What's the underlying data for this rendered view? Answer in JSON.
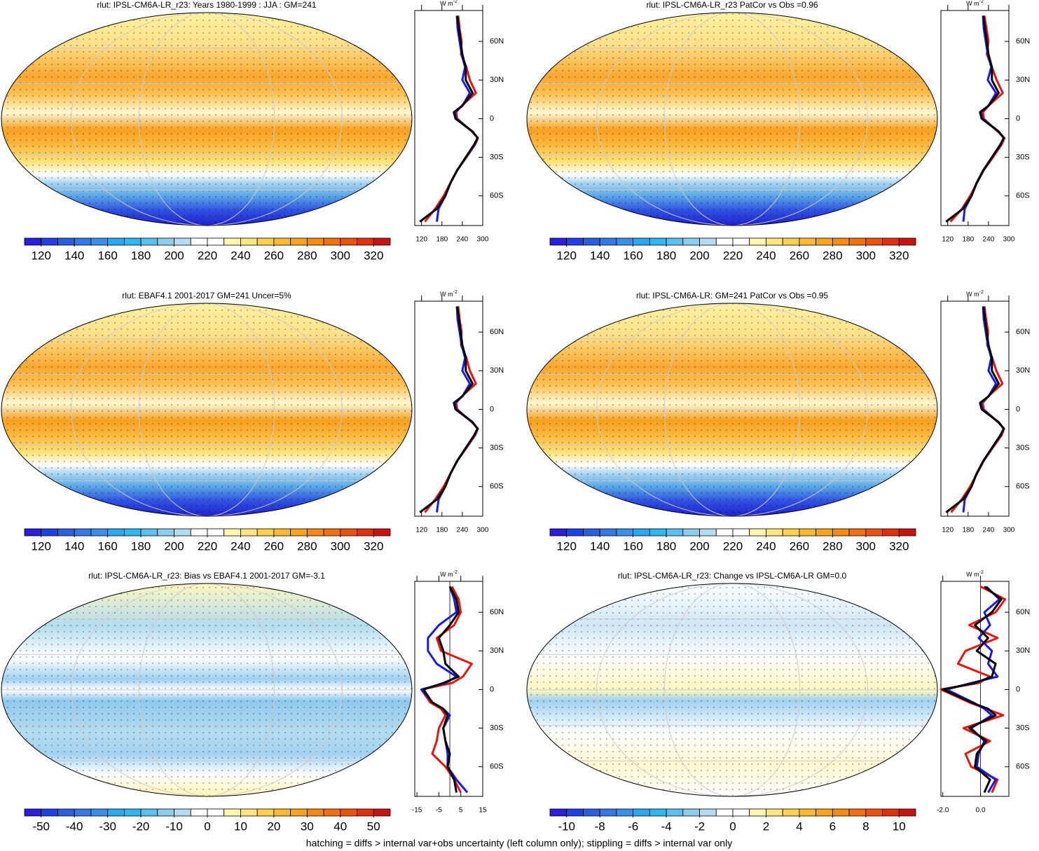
{
  "panels": [
    {
      "title": "rlut: IPSL-CM6A-LR_r23: Years 1980-1999 : JJA : GM=241",
      "colorbar": {
        "levels": [
          120,
          130,
          140,
          150,
          160,
          170,
          180,
          190,
          200,
          210,
          220,
          230,
          240,
          250,
          260,
          270,
          280,
          290,
          300,
          310,
          320
        ],
        "ticks": [
          120,
          140,
          160,
          180,
          200,
          220,
          240,
          260,
          280,
          300,
          320
        ]
      },
      "zonal": {
        "units": "W m",
        "units_sup": "-2",
        "xlim": [
          100,
          300
        ],
        "xticks": [
          120,
          180,
          240,
          300
        ],
        "ylim": [
          -83,
          84
        ],
        "yticks": [
          {
            "value": 60,
            "label": "60N"
          },
          {
            "value": 30,
            "label": "30N"
          },
          0,
          {
            "value": -30,
            "label": "30S"
          },
          {
            "value": -60,
            "label": "60S"
          }
        ],
        "lats": [
          -80,
          -70,
          -60,
          -50,
          -40,
          -30,
          -20,
          -15,
          -10,
          0,
          5,
          10,
          20,
          30,
          40,
          50,
          60,
          70,
          80
        ],
        "series": [
          {
            "color": "#e8150e",
            "values": [
              130,
              160,
              185,
              205,
              225,
              252,
              278,
              286,
              268,
              225,
              222,
              238,
              280,
              262,
              252,
              236,
              238,
              232,
              228
            ]
          },
          {
            "color": "#1a1ae6",
            "values": [
              165,
              170,
              190,
              205,
              225,
              250,
              276,
              285,
              270,
              222,
              218,
              240,
              262,
              240,
              248,
              238,
              232,
              226,
              224
            ]
          },
          {
            "color": "#000000",
            "values": [
              115,
              165,
              190,
              205,
              225,
              250,
              275,
              285,
              270,
              220,
              215,
              240,
              270,
              250,
              250,
              240,
              235,
              230,
              225
            ]
          }
        ]
      }
    },
    {
      "title": "rlut: IPSL-CM6A-LR_r23 PatCor vs Obs =0.96",
      "colorbar": {
        "levels": [
          120,
          130,
          140,
          150,
          160,
          170,
          180,
          190,
          200,
          210,
          220,
          230,
          240,
          250,
          260,
          270,
          280,
          290,
          300,
          310,
          320
        ],
        "ticks": [
          120,
          140,
          160,
          180,
          200,
          220,
          240,
          260,
          280,
          300,
          320
        ]
      },
      "zonal": {
        "units": "W m",
        "units_sup": "-2",
        "xlim": [
          100,
          300
        ],
        "xticks": [
          120,
          180,
          240,
          300
        ],
        "ylim": [
          -83,
          84
        ],
        "yticks": [
          {
            "value": 60,
            "label": "60N"
          },
          {
            "value": 30,
            "label": "30N"
          },
          0,
          {
            "value": -30,
            "label": "30S"
          },
          {
            "value": -60,
            "label": "60S"
          }
        ],
        "lats": [
          -80,
          -70,
          -60,
          -50,
          -40,
          -30,
          -20,
          -15,
          -10,
          0,
          5,
          10,
          20,
          30,
          40,
          50,
          60,
          70,
          80
        ],
        "series": [
          {
            "color": "#e8150e",
            "values": [
              128,
              162,
              186,
              206,
              226,
              253,
              279,
              287,
              267,
              226,
              224,
              240,
              282,
              264,
              250,
              235,
              240,
              234,
              228
            ]
          },
          {
            "color": "#1a1ae6",
            "values": [
              166,
              170,
              190,
              205,
              225,
              250,
              276,
              285,
              270,
              222,
              218,
              240,
              262,
              238,
              248,
              238,
              232,
              226,
              224
            ]
          },
          {
            "color": "#000000",
            "values": [
              115,
              165,
              190,
              205,
              225,
              250,
              275,
              285,
              270,
              220,
              215,
              240,
              270,
              250,
              250,
              240,
              235,
              230,
              225
            ]
          }
        ]
      }
    },
    {
      "title": "rlut: EBAF4.1 2001-2017 GM=241 Uncer=5%",
      "colorbar": {
        "levels": [
          120,
          130,
          140,
          150,
          160,
          170,
          180,
          190,
          200,
          210,
          220,
          230,
          240,
          250,
          260,
          270,
          280,
          290,
          300,
          310,
          320
        ],
        "ticks": [
          120,
          140,
          160,
          180,
          200,
          220,
          240,
          260,
          280,
          300,
          320
        ]
      },
      "zonal": {
        "units": "W m",
        "units_sup": "-2",
        "xlim": [
          100,
          300
        ],
        "xticks": [
          120,
          180,
          240,
          300
        ],
        "ylim": [
          -83,
          84
        ],
        "yticks": [
          {
            "value": 60,
            "label": "60N"
          },
          {
            "value": 30,
            "label": "30N"
          },
          0,
          {
            "value": -30,
            "label": "30S"
          },
          {
            "value": -60,
            "label": "60S"
          }
        ],
        "lats": [
          -80,
          -70,
          -60,
          -50,
          -40,
          -30,
          -20,
          -15,
          -10,
          0,
          5,
          10,
          20,
          30,
          40,
          50,
          60,
          70,
          80
        ],
        "series": [
          {
            "color": "#e8150e",
            "values": [
              130,
              160,
              185,
              205,
              225,
              252,
              278,
              286,
              268,
              225,
              222,
              238,
              280,
              262,
              252,
              236,
              238,
              232,
              228
            ]
          },
          {
            "color": "#1a1ae6",
            "values": [
              165,
              170,
              190,
              205,
              225,
              250,
              276,
              285,
              270,
              222,
              218,
              240,
              262,
              240,
              248,
              238,
              232,
              226,
              224
            ]
          },
          {
            "color": "#000000",
            "values": [
              115,
              165,
              190,
              205,
              225,
              250,
              275,
              285,
              270,
              220,
              215,
              240,
              270,
              250,
              250,
              240,
              235,
              230,
              225
            ]
          }
        ]
      }
    },
    {
      "title": "rlut: IPSL-CM6A-LR: GM=241 PatCor vs Obs =0.95",
      "colorbar": {
        "levels": [
          120,
          130,
          140,
          150,
          160,
          170,
          180,
          190,
          200,
          210,
          220,
          230,
          240,
          250,
          260,
          270,
          280,
          290,
          300,
          310,
          320
        ],
        "ticks": [
          120,
          140,
          160,
          180,
          200,
          220,
          240,
          260,
          280,
          300,
          320
        ]
      },
      "zonal": {
        "units": "W m",
        "units_sup": "-2",
        "xlim": [
          100,
          300
        ],
        "xticks": [
          120,
          180,
          240,
          300
        ],
        "ylim": [
          -83,
          84
        ],
        "yticks": [
          {
            "value": 60,
            "label": "60N"
          },
          {
            "value": 30,
            "label": "30N"
          },
          0,
          {
            "value": -30,
            "label": "30S"
          },
          {
            "value": -60,
            "label": "60S"
          }
        ],
        "lats": [
          -80,
          -70,
          -60,
          -50,
          -40,
          -30,
          -20,
          -15,
          -10,
          0,
          5,
          10,
          20,
          30,
          40,
          50,
          60,
          70,
          80
        ],
        "series": [
          {
            "color": "#e8150e",
            "values": [
              130,
              161,
              186,
              206,
              226,
              252,
              279,
              286,
              268,
              226,
              223,
              239,
              281,
              263,
              251,
              236,
              239,
              233,
              228
            ]
          },
          {
            "color": "#1a1ae6",
            "values": [
              166,
              170,
              190,
              205,
              225,
              250,
              276,
              285,
              270,
              222,
              218,
              240,
              262,
              240,
              248,
              238,
              232,
              226,
              224
            ]
          },
          {
            "color": "#000000",
            "values": [
              115,
              165,
              190,
              205,
              225,
              250,
              275,
              285,
              270,
              220,
              215,
              240,
              270,
              250,
              250,
              240,
              235,
              230,
              225
            ]
          }
        ]
      }
    },
    {
      "title": "rlut: IPSL-CM6A-LR_r23: Bias vs EBAF4.1 2001-2017 GM=-3.1",
      "colorbar": {
        "levels": [
          -50,
          -45,
          -40,
          -35,
          -30,
          -25,
          -20,
          -15,
          -10,
          -5,
          0,
          5,
          10,
          15,
          20,
          25,
          30,
          35,
          40,
          45,
          50
        ],
        "ticks": [
          -50,
          -40,
          -30,
          -20,
          -10,
          0,
          10,
          20,
          30,
          40,
          50
        ]
      },
      "zonal": {
        "units": "W m",
        "units_sup": "-2",
        "xlim": [
          -16,
          15
        ],
        "xticks": [
          -15,
          -5,
          5,
          15
        ],
        "ylim": [
          -83,
          84
        ],
        "yticks": [
          {
            "value": 60,
            "label": "60N"
          },
          {
            "value": 30,
            "label": "30N"
          },
          0,
          {
            "value": -30,
            "label": "30S"
          },
          {
            "value": -60,
            "label": "60S"
          }
        ],
        "lats": [
          -80,
          -70,
          -60,
          -50,
          -40,
          -30,
          -20,
          -15,
          -10,
          0,
          5,
          10,
          20,
          30,
          40,
          50,
          60,
          70,
          80
        ],
        "series": [
          {
            "color": "#e8150e",
            "values": [
              5,
              2,
              -2,
              -8,
              -6,
              -5,
              -2,
              -4,
              -9,
              -13,
              1,
              6,
              10,
              -4,
              -6,
              2,
              5,
              4,
              1
            ]
          },
          {
            "color": "#1a1ae6",
            "values": [
              8,
              3,
              -1,
              -1,
              -2,
              -3,
              0,
              -3,
              -8,
              -13,
              -2,
              3,
              -6,
              -10,
              -10,
              -5,
              3,
              2,
              0
            ]
          },
          {
            "color": "#000000",
            "values": [
              3,
              2,
              -1,
              0,
              -2,
              -3,
              -1,
              -3,
              -8,
              -12,
              -3,
              4,
              -2,
              -3,
              -5,
              0,
              4,
              3,
              0
            ]
          }
        ]
      }
    },
    {
      "title": "rlut: IPSL-CM6A-LR_r23: Change vs IPSL-CM6A-LR GM=0.0",
      "colorbar": {
        "levels": [
          -10,
          -9,
          -8,
          -7,
          -6,
          -5,
          -4,
          -3,
          -2,
          -1,
          0,
          1,
          2,
          3,
          4,
          5,
          6,
          7,
          8,
          9,
          10
        ],
        "ticks": [
          -10,
          -8,
          -6,
          -4,
          -2,
          0,
          2,
          4,
          6,
          8,
          10
        ]
      },
      "zonal": {
        "units": "W m",
        "units_sup": "-2",
        "xlim": [
          -2.1,
          1.5
        ],
        "xticks": [
          {
            "value": -2,
            "label": "-2.0"
          },
          {
            "value": 0,
            "label": "0.0"
          }
        ],
        "ylim": [
          -83,
          84
        ],
        "yticks": [
          {
            "value": 60,
            "label": "60N"
          },
          {
            "value": 30,
            "label": "30N"
          },
          0,
          {
            "value": -30,
            "label": "30S"
          },
          {
            "value": -60,
            "label": "60S"
          }
        ],
        "lats": [
          -80,
          -70,
          -60,
          -50,
          -40,
          -30,
          -20,
          -15,
          -10,
          0,
          5,
          10,
          20,
          30,
          40,
          50,
          60,
          70,
          80
        ],
        "series": [
          {
            "color": "#e8150e",
            "values": [
              0.6,
              0.9,
              -0.5,
              -0.8,
              0.5,
              -0.9,
              1.2,
              0.3,
              -0.6,
              -2.1,
              -0.1,
              0.5,
              -1.2,
              -0.8,
              0.9,
              -0.6,
              0.8,
              1.3,
              0.0
            ]
          },
          {
            "color": "#1a1ae6",
            "values": [
              0.4,
              0.8,
              -0.2,
              -0.1,
              0.2,
              -0.5,
              0.6,
              0.2,
              -0.4,
              -1.8,
              -0.5,
              0.9,
              0.4,
              0.6,
              -0.1,
              0.5,
              0.2,
              1.0,
              0.3
            ]
          },
          {
            "color": "#000000",
            "values": [
              0.2,
              0.5,
              -0.3,
              -0.2,
              0.3,
              -0.6,
              0.8,
              0.4,
              -0.5,
              -2.0,
              -0.3,
              0.6,
              0.8,
              -0.2,
              0.4,
              -0.3,
              0.6,
              1.1,
              0.2
            ]
          }
        ]
      }
    }
  ],
  "colorbar_colors": [
    "#2a1fe0",
    "#2040e8",
    "#2c5fe0",
    "#3478e8",
    "#3a90e8",
    "#2aa8f0",
    "#30b8f0",
    "#5ac0f0",
    "#8ccdeb",
    "#b4dcf0",
    "#ffffff",
    "#ffffff",
    "#fff7b0",
    "#fee680",
    "#fdd050",
    "#fcbb30",
    "#f9a31e",
    "#f78a14",
    "#f2700e",
    "#ea520e",
    "#e0300e",
    "#c8140e"
  ],
  "footer": "hatching = diffs > internal var+obs uncertainty (left column only); stippling = diffs > internal var only"
}
